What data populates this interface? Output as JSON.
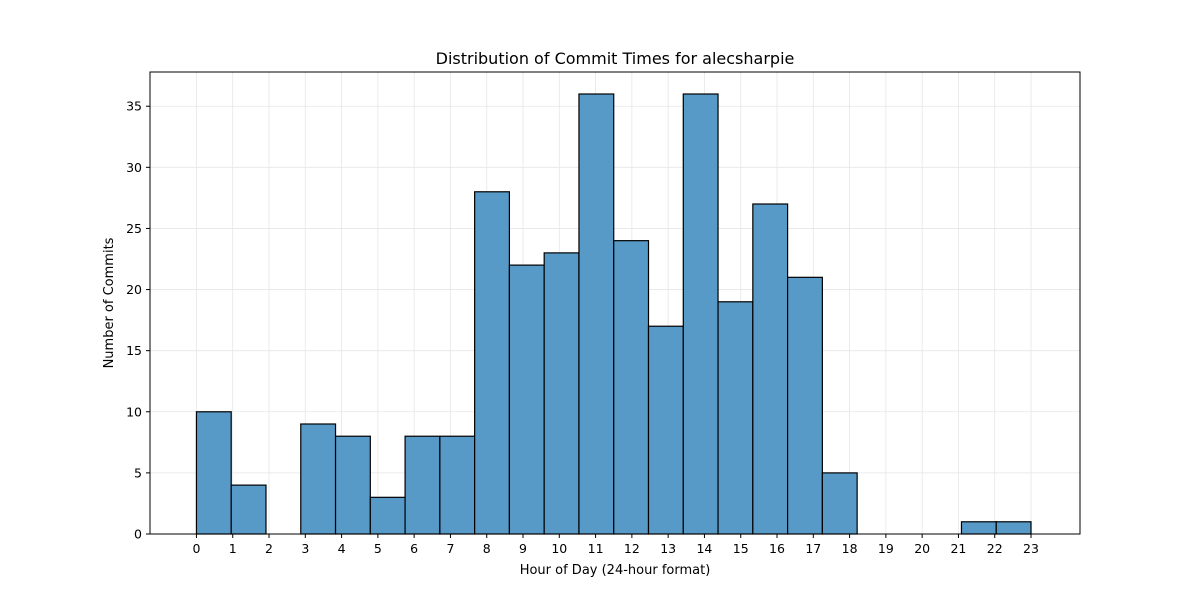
{
  "chart_data": {
    "type": "bar",
    "title": "Distribution of Commit Times for alecsharpie",
    "xlabel": "Hour of Day (24-hour format)",
    "ylabel": "Number of Commits",
    "xlim": [
      -1.28,
      24.35
    ],
    "ylim": [
      0,
      37.8
    ],
    "grid": true,
    "colors": {
      "bar_fill": "#5799c7",
      "bar_edge": "#000000",
      "grid": "#e6e6e6"
    },
    "x_ticks": [
      "0",
      "1",
      "2",
      "3",
      "4",
      "5",
      "6",
      "7",
      "8",
      "9",
      "10",
      "11",
      "12",
      "13",
      "14",
      "15",
      "16",
      "17",
      "18",
      "19",
      "20",
      "21",
      "22",
      "23"
    ],
    "y_ticks": [
      "0",
      "5",
      "10",
      "15",
      "20",
      "25",
      "30",
      "35"
    ],
    "bin_edges": [
      0,
      0.9583,
      1.9167,
      2.875,
      3.8333,
      4.7917,
      5.75,
      6.7083,
      7.6667,
      8.625,
      9.5833,
      10.5417,
      11.5,
      12.4583,
      13.4167,
      14.375,
      15.3333,
      16.2917,
      17.25,
      18.2083,
      19.1667,
      20.125,
      21.0833,
      22.0417,
      23
    ],
    "values": [
      10,
      4,
      0,
      9,
      8,
      3,
      8,
      8,
      28,
      22,
      23,
      36,
      24,
      17,
      36,
      19,
      27,
      21,
      5,
      0,
      0,
      0,
      1,
      1
    ]
  }
}
